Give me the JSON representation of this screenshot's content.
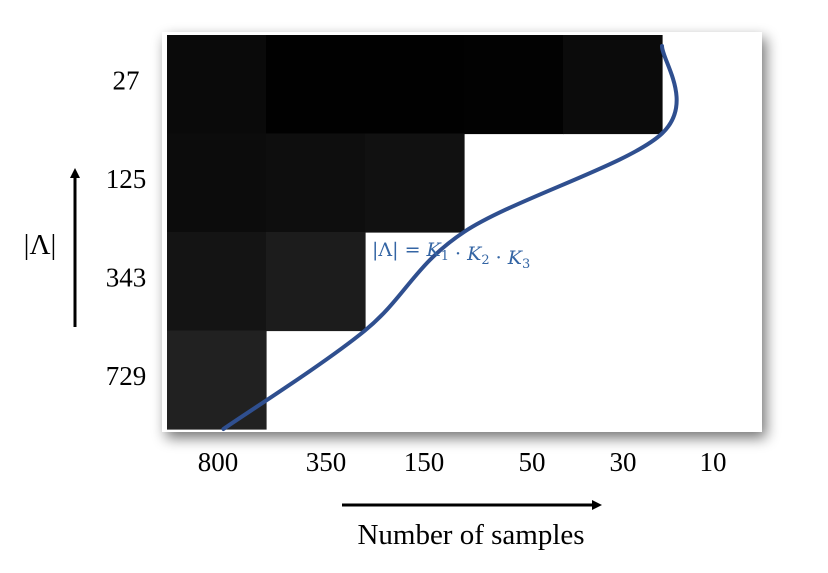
{
  "chart_data": {
    "type": "heatmap",
    "title": "",
    "xlabel": "Number of samples",
    "ylabel": "|Λ|",
    "x_categories": [
      "800",
      "350",
      "150",
      "50",
      "30",
      "10"
    ],
    "y_categories": [
      "27",
      "125",
      "343",
      "729"
    ],
    "cells": [
      {
        "x": "800",
        "y": "27",
        "value": 0.04,
        "color": "#0a0a0a"
      },
      {
        "x": "350",
        "y": "27",
        "value": 0.0,
        "color": "#010101"
      },
      {
        "x": "150",
        "y": "27",
        "value": 0.0,
        "color": "#010101"
      },
      {
        "x": "50",
        "y": "27",
        "value": 0.01,
        "color": "#020202"
      },
      {
        "x": "30",
        "y": "27",
        "value": 0.05,
        "color": "#0b0b0b"
      },
      {
        "x": "800",
        "y": "125",
        "value": 0.05,
        "color": "#0c0c0c"
      },
      {
        "x": "350",
        "y": "125",
        "value": 0.06,
        "color": "#0e0e0e"
      },
      {
        "x": "150",
        "y": "125",
        "value": 0.07,
        "color": "#111111"
      },
      {
        "x": "800",
        "y": "343",
        "value": 0.08,
        "color": "#141414"
      },
      {
        "x": "350",
        "y": "343",
        "value": 0.11,
        "color": "#1c1c1c"
      },
      {
        "x": "800",
        "y": "729",
        "value": 0.13,
        "color": "#212121"
      }
    ],
    "empty_color": "#ffffff",
    "curve": {
      "label": {
        "lhs": "|Λ| = ",
        "K": "K",
        "subs": [
          "1",
          "2",
          "3"
        ],
        "dot": " · "
      },
      "color": "#2f4f8f",
      "points": [
        {
          "x": "30",
          "y": "27"
        },
        {
          "x": "150",
          "y": "125"
        },
        {
          "x": "350",
          "y": "343"
        },
        {
          "x": "800",
          "y": "729"
        }
      ]
    },
    "grid": false,
    "legend": "none"
  }
}
